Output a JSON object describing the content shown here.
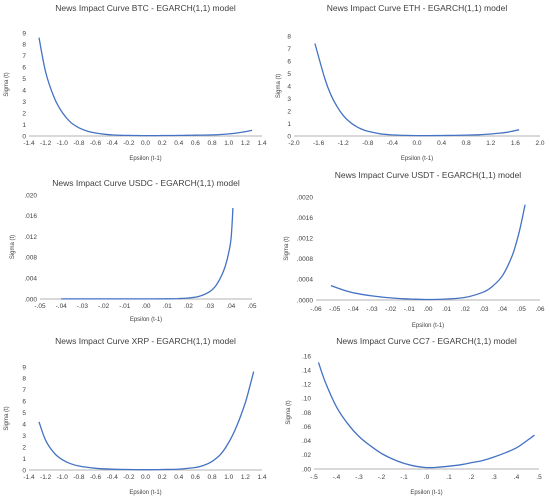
{
  "chart_data": [
    {
      "type": "line",
      "title": "News Impact Curve BTC - EGARCH(1,1) model",
      "xlabel": "Epsilon (t-1)",
      "ylabel": "Sigma (t)",
      "xlim": [
        -1.4,
        1.4
      ],
      "ylim": [
        0,
        9
      ],
      "xticks": [
        -1.4,
        -1.2,
        -1.0,
        -0.8,
        -0.6,
        -0.4,
        -0.2,
        0.0,
        0.2,
        0.4,
        0.6,
        0.8,
        1.0,
        1.2,
        1.4
      ],
      "xtick_labels": [
        "-1.4",
        "-1.2",
        "-1.0",
        "-0.8",
        "-0.6",
        "-0.4",
        "-0.2",
        "0.0",
        "0.2",
        "0.4",
        "0.6",
        "0.8",
        "1.0",
        "1.2",
        "1.4"
      ],
      "yticks": [
        0,
        1,
        2,
        3,
        4,
        5,
        6,
        7,
        8,
        9
      ],
      "ytick_labels": [
        "0",
        "1",
        "2",
        "3",
        "4",
        "5",
        "6",
        "7",
        "8",
        "9"
      ],
      "series": [
        {
          "x": [
            -1.28,
            -1.2,
            -1.1,
            -1.0,
            -0.9,
            -0.8,
            -0.7,
            -0.6,
            -0.5,
            -0.4,
            -0.3,
            -0.2,
            -0.1,
            0.0,
            0.1,
            0.2,
            0.3,
            0.4,
            0.5,
            0.6,
            0.7,
            0.8,
            0.9,
            1.0,
            1.1,
            1.2,
            1.28
          ],
          "y": [
            8.6,
            5.6,
            3.4,
            2.05,
            1.2,
            0.72,
            0.43,
            0.26,
            0.16,
            0.1,
            0.065,
            0.05,
            0.04,
            0.035,
            0.035,
            0.04,
            0.045,
            0.05,
            0.06,
            0.07,
            0.08,
            0.1,
            0.13,
            0.18,
            0.26,
            0.38,
            0.5
          ]
        }
      ]
    },
    {
      "type": "line",
      "title": "News Impact Curve ETH - EGARCH(1,1) model",
      "xlabel": "Epsilon (t-1)",
      "ylabel": "Sigma (t)",
      "xlim": [
        -2.0,
        2.0
      ],
      "ylim": [
        0,
        8
      ],
      "xticks": [
        -2.0,
        -1.6,
        -1.2,
        -0.8,
        -0.4,
        0.0,
        0.4,
        0.8,
        1.2,
        1.6,
        2.0
      ],
      "xtick_labels": [
        "-2.0",
        "-1.6",
        "-1.2",
        "-0.8",
        "-0.4",
        "0.0",
        "0.4",
        "0.8",
        "1.2",
        "1.6",
        "2.0"
      ],
      "yticks": [
        0,
        1,
        2,
        3,
        4,
        5,
        6,
        7,
        8
      ],
      "ytick_labels": [
        "0",
        "1",
        "2",
        "3",
        "4",
        "5",
        "6",
        "7",
        "8"
      ],
      "series": [
        {
          "x": [
            -1.66,
            -1.5,
            -1.4,
            -1.3,
            -1.2,
            -1.1,
            -1.0,
            -0.9,
            -0.8,
            -0.6,
            -0.4,
            -0.2,
            0.0,
            0.2,
            0.4,
            0.6,
            0.8,
            1.0,
            1.2,
            1.4,
            1.5,
            1.66
          ],
          "y": [
            7.4,
            4.6,
            3.3,
            2.35,
            1.65,
            1.15,
            0.8,
            0.55,
            0.38,
            0.18,
            0.09,
            0.05,
            0.035,
            0.035,
            0.04,
            0.05,
            0.07,
            0.1,
            0.16,
            0.26,
            0.33,
            0.5
          ]
        }
      ]
    },
    {
      "type": "line",
      "title": "News Impact Curve USDC - EGARCH(1,1) model",
      "xlabel": "Epsilon (t-1)",
      "ylabel": "Sigma (t)",
      "xlim": [
        -0.05,
        0.05
      ],
      "ylim": [
        0,
        0.02
      ],
      "xticks": [
        -0.05,
        -0.04,
        -0.03,
        -0.02,
        -0.01,
        0.0,
        0.01,
        0.02,
        0.03,
        0.04,
        0.05
      ],
      "xtick_labels": [
        "-.05",
        "-.04",
        "-.03",
        "-.02",
        "-.01",
        ".00",
        ".01",
        ".02",
        ".03",
        ".04",
        ".05"
      ],
      "yticks": [
        0,
        0.004,
        0.008,
        0.012,
        0.016,
        0.02
      ],
      "ytick_labels": [
        ".000",
        ".004",
        ".008",
        ".012",
        ".016",
        ".020"
      ],
      "series": [
        {
          "x": [
            -0.04,
            -0.03,
            -0.02,
            -0.01,
            0.0,
            0.01,
            0.015,
            0.02,
            0.025,
            0.03,
            0.033,
            0.036,
            0.038,
            0.04,
            0.041
          ],
          "y": [
            2e-05,
            2e-05,
            2e-05,
            2e-05,
            2e-05,
            4e-05,
            8e-05,
            0.0002,
            0.0005,
            0.0014,
            0.0026,
            0.0048,
            0.0072,
            0.0112,
            0.0175
          ]
        }
      ]
    },
    {
      "type": "line",
      "title": "News Impact Curve USDT - EGARCH(1,1) model",
      "xlabel": "Epsilon (t-1)",
      "ylabel": "Sigma (t)",
      "xlim": [
        -0.06,
        0.06
      ],
      "ylim": [
        0,
        0.002
      ],
      "xticks": [
        -0.06,
        -0.05,
        -0.04,
        -0.03,
        -0.02,
        -0.01,
        0.0,
        0.01,
        0.02,
        0.03,
        0.04,
        0.05,
        0.06
      ],
      "xtick_labels": [
        "-.06",
        "-.05",
        "-.04",
        "-.03",
        "-.02",
        "-.01",
        ".00",
        ".01",
        ".02",
        ".03",
        ".04",
        ".05",
        ".06"
      ],
      "yticks": [
        0,
        0.0004,
        0.0008,
        0.0012,
        0.0016,
        0.002
      ],
      "ytick_labels": [
        ".0000",
        ".0004",
        ".0008",
        ".0012",
        ".0016",
        ".0020"
      ],
      "series": [
        {
          "x": [
            -0.052,
            -0.045,
            -0.04,
            -0.03,
            -0.02,
            -0.01,
            0.0,
            0.01,
            0.02,
            0.03,
            0.035,
            0.04,
            0.045,
            0.048,
            0.05,
            0.052
          ],
          "y": [
            0.00028,
            0.00019,
            0.00014,
            8e-05,
            4e-05,
            2e-05,
            1e-05,
            2e-05,
            5e-05,
            0.00016,
            0.00028,
            0.00048,
            0.00085,
            0.0012,
            0.0015,
            0.00185
          ]
        }
      ]
    },
    {
      "type": "line",
      "title": "News Impact Curve XRP - EGARCH(1,1) model",
      "xlabel": "Epsilon (t-1)",
      "ylabel": "Sigma (t)",
      "xlim": [
        -1.4,
        1.4
      ],
      "ylim": [
        0,
        9
      ],
      "xticks": [
        -1.4,
        -1.2,
        -1.0,
        -0.8,
        -0.6,
        -0.4,
        -0.2,
        0.0,
        0.2,
        0.4,
        0.6,
        0.8,
        1.0,
        1.2,
        1.4
      ],
      "xtick_labels": [
        "-1.4",
        "-1.2",
        "-1.0",
        "-0.8",
        "-0.6",
        "-0.4",
        "-0.2",
        "0.0",
        "0.2",
        "0.4",
        "0.6",
        "0.8",
        "1.0",
        "1.2",
        "1.4"
      ],
      "yticks": [
        0,
        1,
        2,
        3,
        4,
        5,
        6,
        7,
        8,
        9
      ],
      "ytick_labels": [
        "0",
        "1",
        "2",
        "3",
        "4",
        "5",
        "6",
        "7",
        "8",
        "9"
      ],
      "series": [
        {
          "x": [
            -1.28,
            -1.2,
            -1.1,
            -1.0,
            -0.9,
            -0.8,
            -0.6,
            -0.4,
            -0.2,
            0.0,
            0.2,
            0.4,
            0.6,
            0.7,
            0.8,
            0.9,
            1.0,
            1.1,
            1.2,
            1.25,
            1.3
          ],
          "y": [
            4.2,
            2.6,
            1.5,
            0.9,
            0.55,
            0.35,
            0.15,
            0.07,
            0.04,
            0.03,
            0.04,
            0.08,
            0.22,
            0.4,
            0.75,
            1.35,
            2.4,
            3.9,
            5.9,
            7.2,
            8.6
          ]
        }
      ]
    },
    {
      "type": "line",
      "title": "News Impact Curve CC7 - EGARCH(1,1) model",
      "xlabel": "Epsilon (t-1)",
      "ylabel": "Sigma (t)",
      "xlim": [
        -0.5,
        0.5
      ],
      "ylim": [
        0,
        0.16
      ],
      "xticks": [
        -0.5,
        -0.4,
        -0.3,
        -0.2,
        -0.1,
        0.0,
        0.1,
        0.2,
        0.3,
        0.4,
        0.5
      ],
      "xtick_labels": [
        "-.5",
        "-.4",
        "-.3",
        "-.2",
        "-.1",
        ".0",
        ".1",
        ".2",
        ".3",
        ".4",
        ".5"
      ],
      "yticks": [
        0,
        0.02,
        0.04,
        0.06,
        0.08,
        0.1,
        0.12,
        0.14,
        0.16
      ],
      "ytick_labels": [
        ".00",
        ".02",
        ".04",
        ".06",
        ".08",
        ".10",
        ".12",
        ".14",
        ".16"
      ],
      "series": [
        {
          "x": [
            -0.48,
            -0.45,
            -0.4,
            -0.35,
            -0.3,
            -0.25,
            -0.2,
            -0.15,
            -0.1,
            -0.05,
            0.0,
            0.05,
            0.1,
            0.15,
            0.2,
            0.25,
            0.3,
            0.35,
            0.4,
            0.45,
            0.48
          ],
          "y": [
            0.151,
            0.123,
            0.088,
            0.064,
            0.046,
            0.033,
            0.022,
            0.014,
            0.008,
            0.004,
            0.002,
            0.0025,
            0.004,
            0.006,
            0.009,
            0.012,
            0.017,
            0.023,
            0.03,
            0.041,
            0.048
          ]
        }
      ]
    }
  ]
}
